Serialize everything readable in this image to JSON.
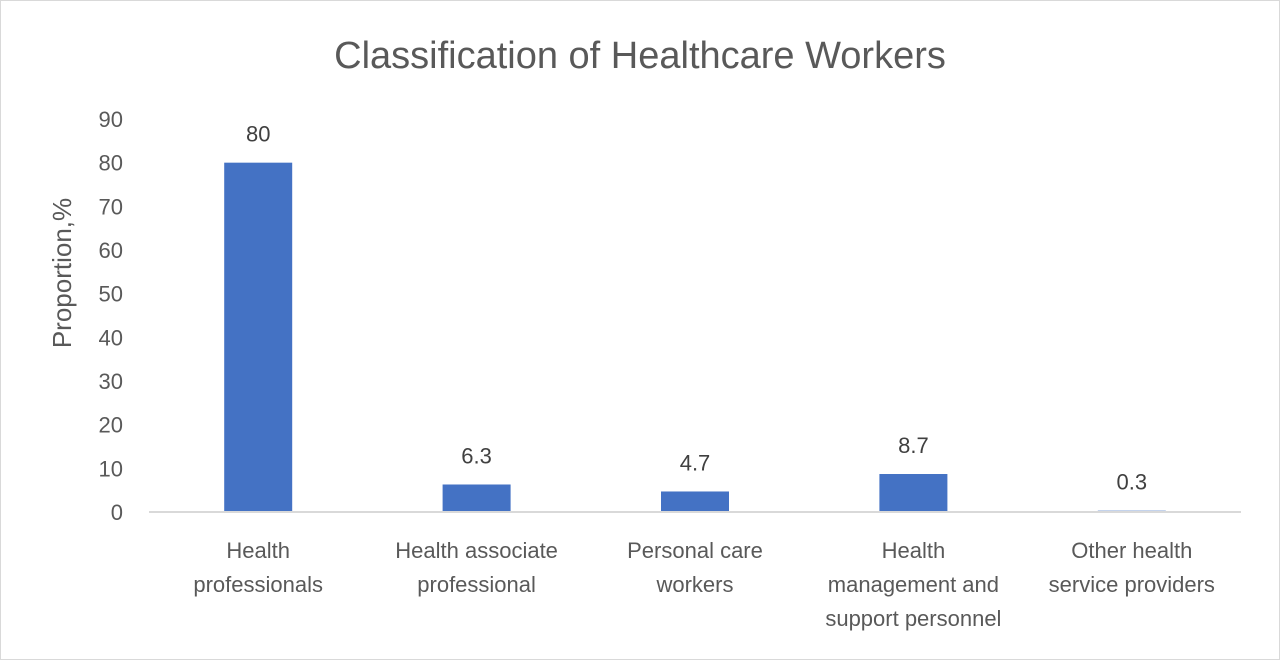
{
  "chart_data": {
    "type": "bar",
    "title": "Classification of Healthcare Workers",
    "xlabel": "",
    "ylabel": "Proportion,%",
    "categories": [
      [
        "Health",
        "professionals"
      ],
      [
        "Health associate",
        "professional"
      ],
      [
        "Personal care",
        "workers"
      ],
      [
        "Health",
        "management and",
        "support personnel"
      ],
      [
        "Other health",
        "service providers"
      ]
    ],
    "values": [
      80,
      6.3,
      4.7,
      8.7,
      0.3
    ],
    "value_labels": [
      "80",
      "6.3",
      "4.7",
      "8.7",
      "0.3"
    ],
    "ylim": [
      0,
      90
    ],
    "yticks": [
      0,
      10,
      20,
      30,
      40,
      50,
      60,
      70,
      80,
      90
    ],
    "grid": false,
    "legend": "none",
    "bar_color": "#4472C4",
    "axis_color": "#d9d9d9"
  }
}
